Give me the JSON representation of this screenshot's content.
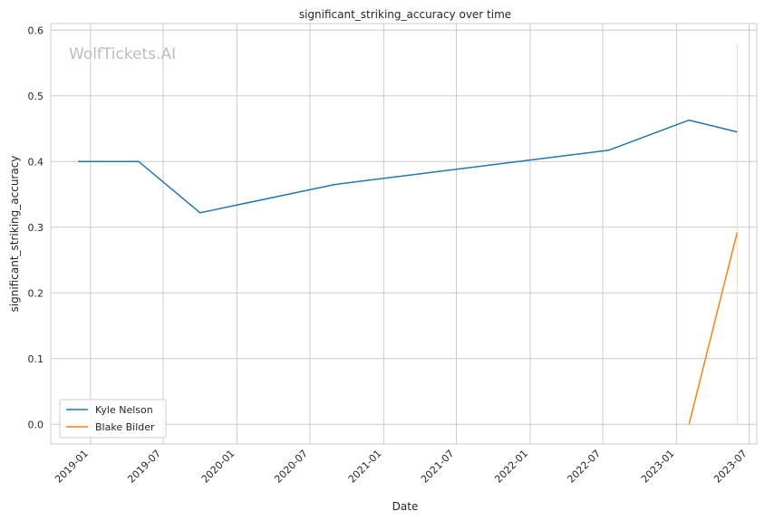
{
  "chart_data": {
    "type": "line",
    "title": "significant_striking_accuracy over time",
    "xlabel": "Date",
    "ylabel": "significant_striking_accuracy",
    "watermark": "WolfTickets.AI",
    "grid": true,
    "legend_placement": "lower-left",
    "xlim": [
      "2018-09-24",
      "2023-07-20"
    ],
    "ylim": [
      -0.03,
      0.61
    ],
    "x_ticks": [
      "2019-01",
      "2019-07",
      "2020-01",
      "2020-07",
      "2021-01",
      "2021-07",
      "2022-01",
      "2022-07",
      "2023-01",
      "2023-07"
    ],
    "y_ticks": [
      "0.0",
      "0.1",
      "0.2",
      "0.3",
      "0.4",
      "0.5",
      "0.6"
    ],
    "series": [
      {
        "name": "Kyle Nelson",
        "color": "#1f77b4",
        "x": [
          "2018-12-01",
          "2019-05-01",
          "2019-10-01",
          "2020-09-01",
          "2022-07-15",
          "2023-02-01",
          "2023-06-01"
        ],
        "y": [
          0.4,
          0.4,
          0.322,
          0.365,
          0.417,
          0.463,
          0.445
        ]
      },
      {
        "name": "Blake Bilder",
        "color": "#ff7f0e",
        "x": [
          "2023-02-01",
          "2023-06-01"
        ],
        "y": [
          0.0,
          0.292
        ]
      }
    ],
    "reference_line": {
      "x": "2023-06-01",
      "y_range": [
        0.0,
        0.58
      ],
      "color": "#ffd9b3"
    }
  }
}
